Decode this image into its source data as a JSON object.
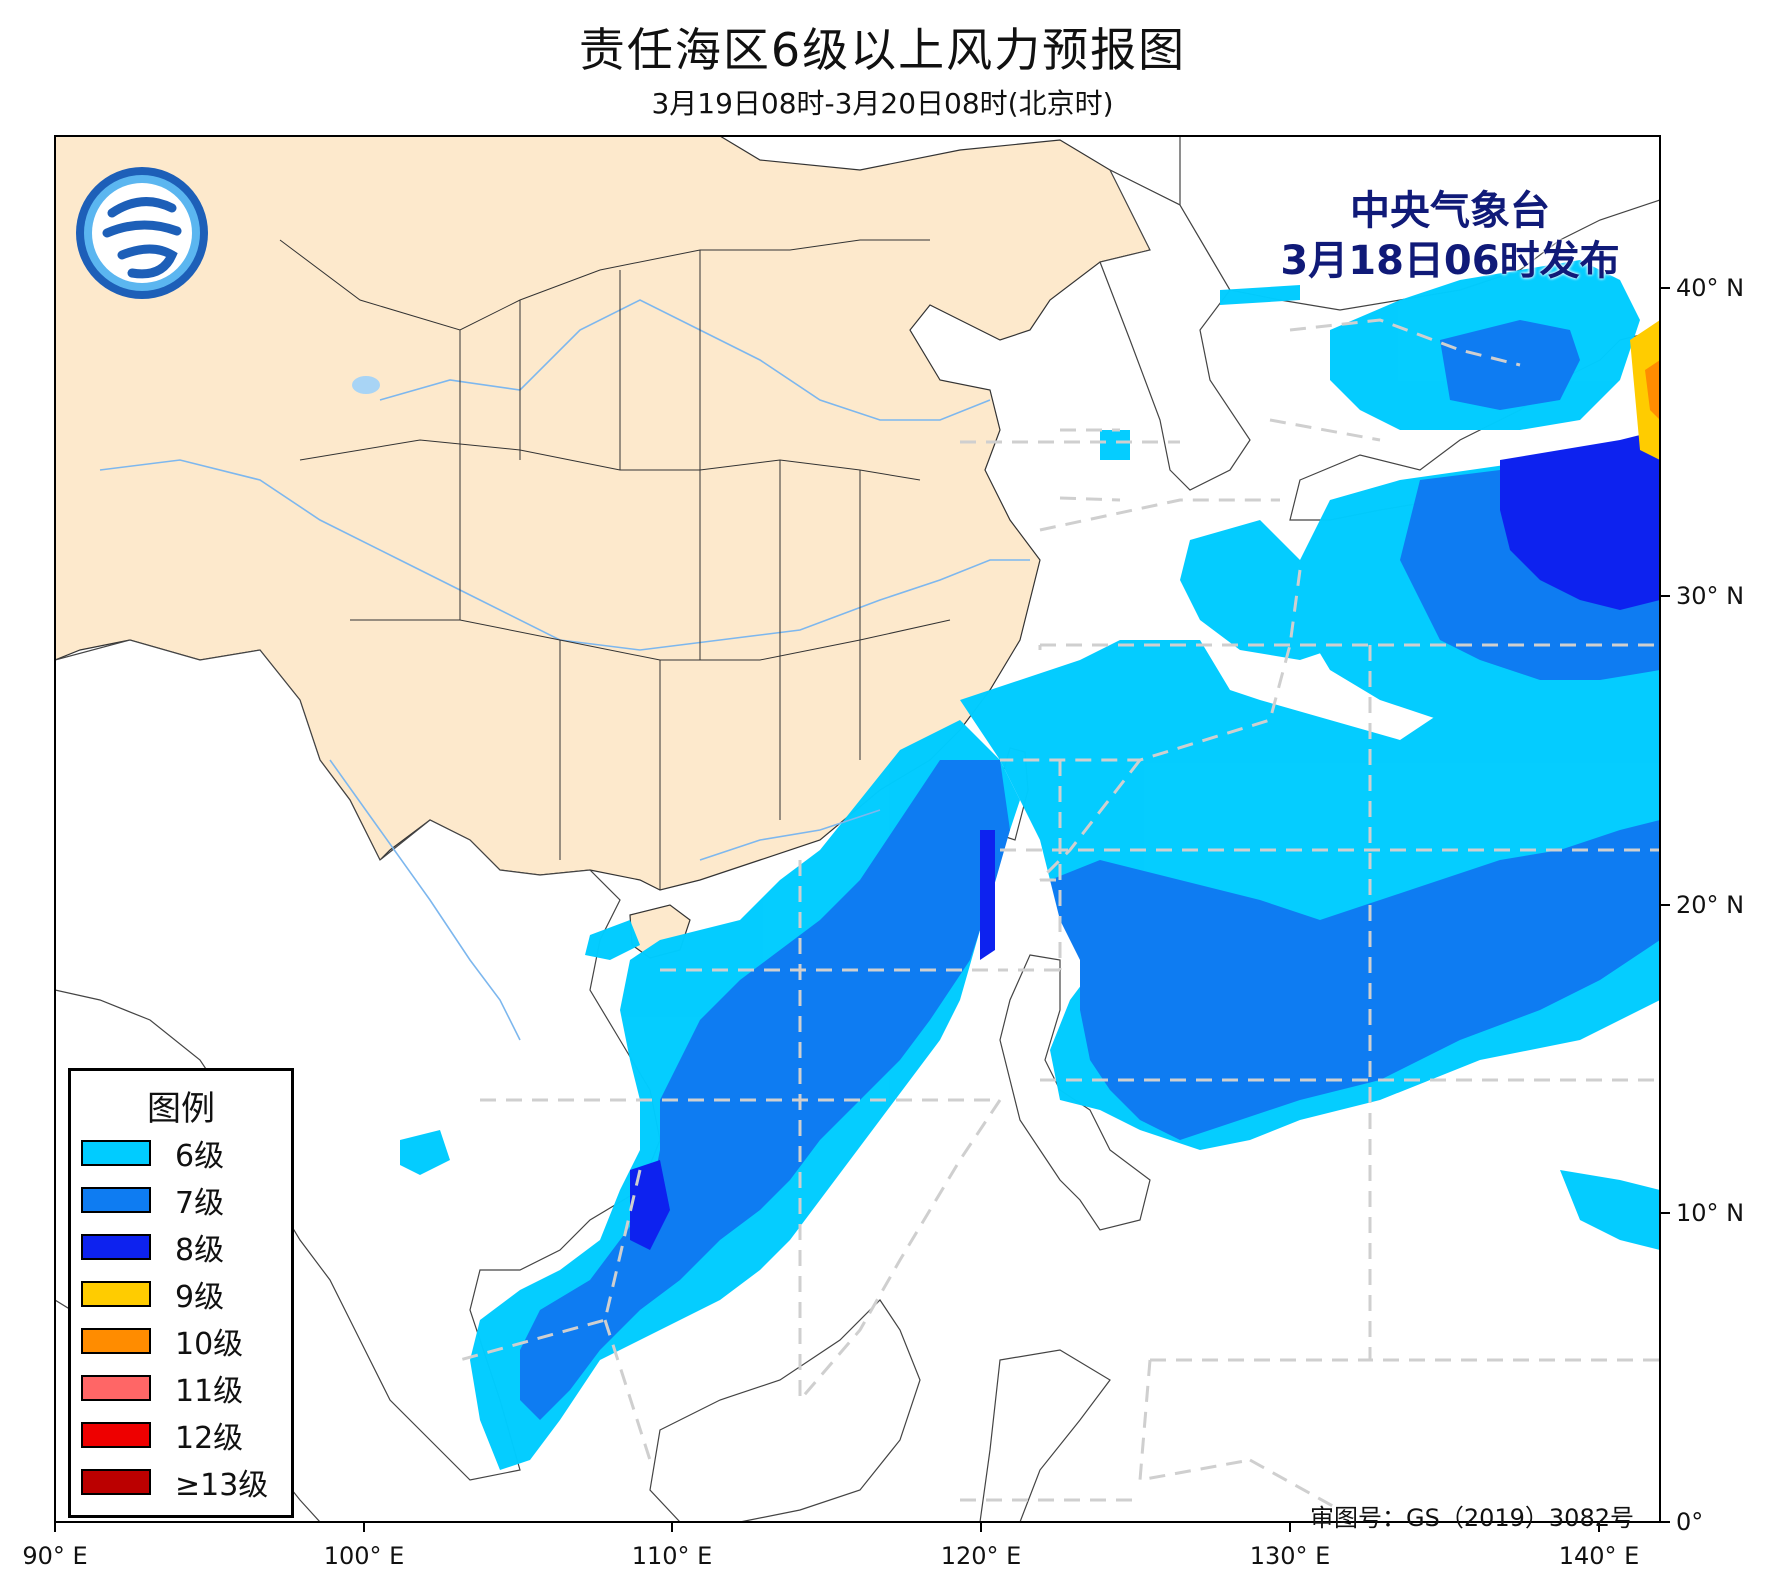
{
  "title": "责任海区6级以上风力预报图",
  "subtitle": "3月19日08时-3月20日08时(北京时)",
  "publisher": {
    "name": "中央气象台",
    "issued": "3月18日06时发布"
  },
  "approval": "审图号：GS（2019）3082号",
  "legend": {
    "title": "图例",
    "items": [
      {
        "label": "6级",
        "color": "#00ccff"
      },
      {
        "label": "7级",
        "color": "#0e7cf2"
      },
      {
        "label": "8级",
        "color": "#0d22ef"
      },
      {
        "label": "9级",
        "color": "#ffcc00"
      },
      {
        "label": "10级",
        "color": "#ff8c00"
      },
      {
        "label": "11级",
        "color": "#ff6666"
      },
      {
        "label": "12级",
        "color": "#ee0000"
      },
      {
        "label": "≥13级",
        "color": "#bb0000"
      }
    ]
  },
  "axes": {
    "x_ticks": [
      "90° E",
      "100° E",
      "110° E",
      "120° E",
      "130° E",
      "140° E"
    ],
    "y_ticks": [
      "0°",
      "10° N",
      "20° N",
      "30° N",
      "40° N"
    ]
  },
  "colors": {
    "land_china": "#fde9cc",
    "land_other": "#ffffff",
    "sea": "#ffffff",
    "river": "#7db7ee",
    "zone_line": "#cfcfcf"
  }
}
